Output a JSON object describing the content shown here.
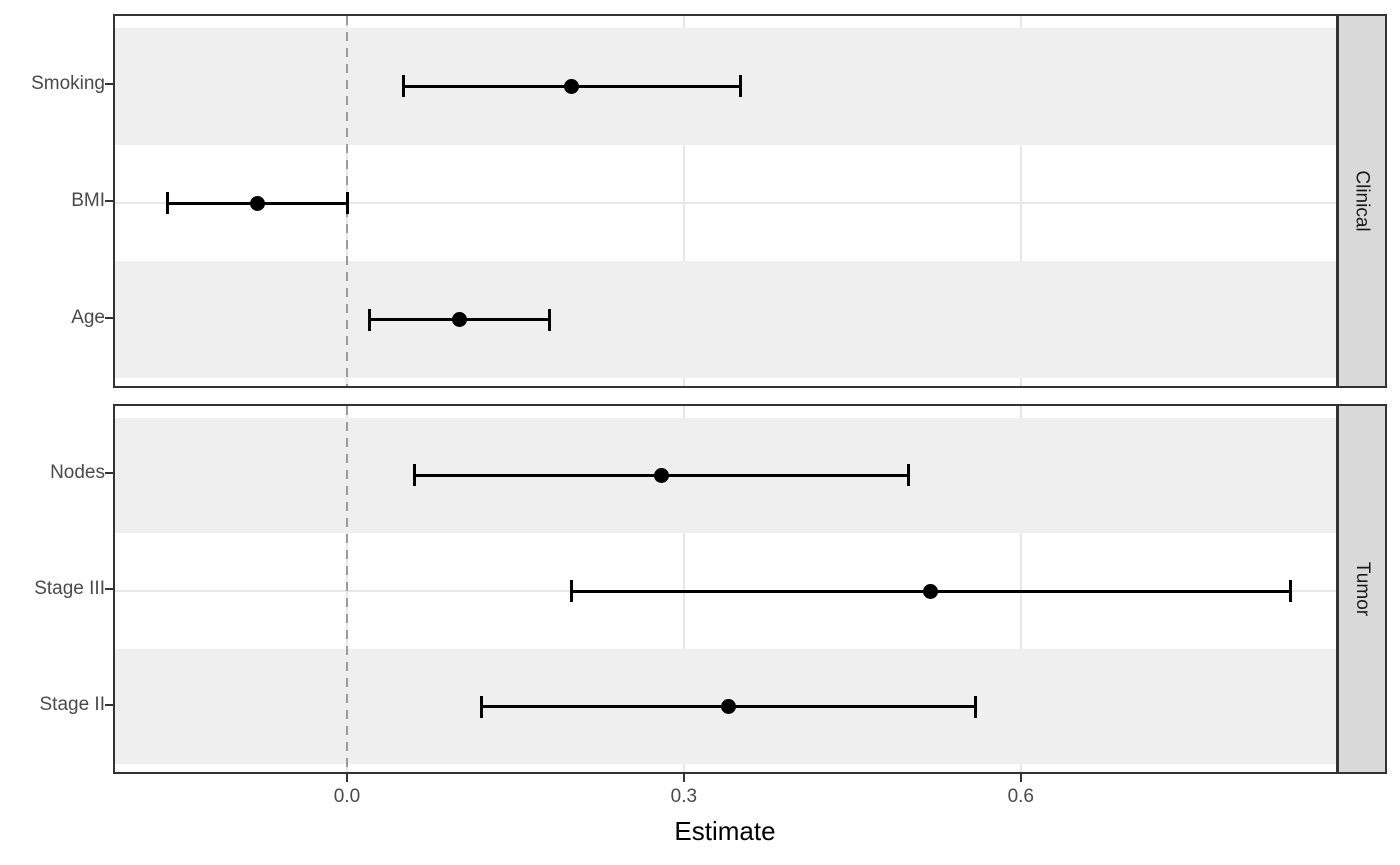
{
  "chart_data": {
    "type": "scatter",
    "subtype": "forest-dot-whisker",
    "title": "",
    "xlabel": "Estimate",
    "ylabel": "",
    "x_ticks": [
      0.0,
      0.3,
      0.6
    ],
    "x_tick_labels": [
      "0.0",
      "0.3",
      "0.6"
    ],
    "xlim": [
      -0.208,
      0.883
    ],
    "reference_line_x": 0.0,
    "grid": true,
    "legend": "none",
    "facets": [
      {
        "label": "Clinical",
        "rows": [
          {
            "label": "Smoking",
            "estimate": 0.2,
            "ci_low": 0.05,
            "ci_high": 0.35
          },
          {
            "label": "BMI",
            "estimate": -0.08,
            "ci_low": -0.16,
            "ci_high": 0.0
          },
          {
            "label": "Age",
            "estimate": 0.1,
            "ci_low": 0.02,
            "ci_high": 0.18
          }
        ]
      },
      {
        "label": "Tumor",
        "rows": [
          {
            "label": "Nodes",
            "estimate": 0.28,
            "ci_low": 0.06,
            "ci_high": 0.5
          },
          {
            "label": "Stage III",
            "estimate": 0.52,
            "ci_low": 0.2,
            "ci_high": 0.84
          },
          {
            "label": "Stage II",
            "estimate": 0.34,
            "ci_low": 0.12,
            "ci_high": 0.56
          }
        ]
      }
    ]
  },
  "colors": {
    "background": "#ffffff",
    "panel_border": "#333333",
    "row_stripe": "#efefef",
    "gridline": "#e7e7e7",
    "facet_strip_bg": "#d9d9d9",
    "facet_strip_text": "#1a1a1a",
    "reference_line": "#9b9b9b",
    "data_color": "#000000",
    "axis_text": "#4a4a4a",
    "axis_title": "#000000",
    "tick_mark": "#333333"
  }
}
